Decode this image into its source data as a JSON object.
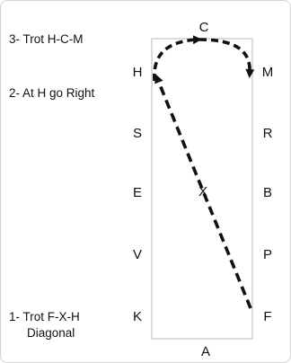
{
  "arena": {
    "letters": {
      "top": "C",
      "bottom": "A",
      "center": "X",
      "left": [
        "H",
        "S",
        "E",
        "V",
        "K"
      ],
      "right": [
        "M",
        "R",
        "B",
        "P",
        "F"
      ]
    }
  },
  "steps": [
    {
      "line1": "3- Trot H-C-M"
    },
    {
      "line1": "2- At H go Right"
    },
    {
      "line1": "1- Trot F-X-H",
      "line2": "Diagonal"
    }
  ],
  "colors": {
    "arena_border": "#c4c4c4",
    "path": "#111111",
    "text": "#111111"
  }
}
